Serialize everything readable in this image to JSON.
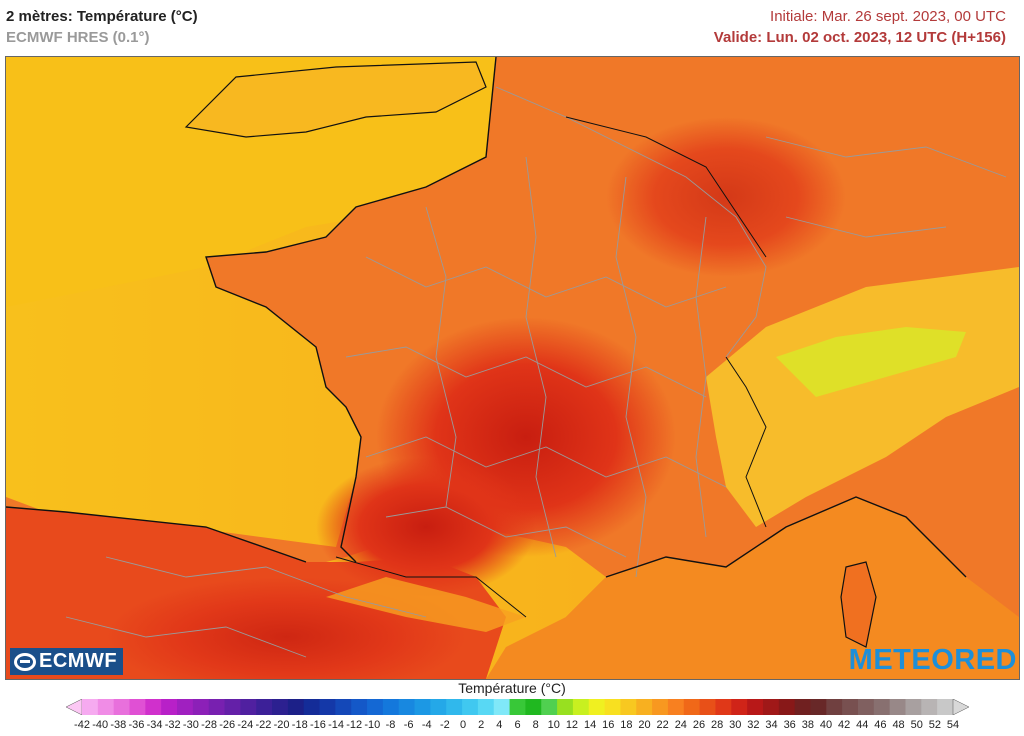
{
  "header": {
    "title": "2 mètres: Température (°C)",
    "model": "ECMWF HRES (0.1°)",
    "initial": "Initiale: Mar. 26 sept. 2023, 00 UTC",
    "valid": "Valide: Lun. 02 oct. 2023, 12 UTC (H+156)"
  },
  "logos": {
    "left": "ECMWF",
    "right": "METEORED"
  },
  "legend": {
    "title": "Température (°C)",
    "min": -42,
    "max": 54,
    "step": 2,
    "colors": [
      "#fcc8f4",
      "#f6aaf0",
      "#f08ce6",
      "#e870dc",
      "#e050d4",
      "#d030cc",
      "#b820c8",
      "#a020c0",
      "#8c20b8",
      "#7820b0",
      "#6420a8",
      "#5020a0",
      "#3c2098",
      "#2c2090",
      "#1c2088",
      "#142c98",
      "#1438a8",
      "#1448b8",
      "#1458c8",
      "#1468d4",
      "#1478dc",
      "#1888e0",
      "#1c98e4",
      "#24a8e8",
      "#30b8ec",
      "#40c8f0",
      "#58d8f4",
      "#80e8f8",
      "#38c838",
      "#20b820",
      "#50d050",
      "#98e020",
      "#c8f020",
      "#f0f020",
      "#f8e020",
      "#f8c820",
      "#f8b020",
      "#f89820",
      "#f88020",
      "#f06818",
      "#e85018",
      "#e03818",
      "#d02418",
      "#b81818",
      "#a01818",
      "#881818",
      "#702020",
      "#682828",
      "#704040",
      "#785050",
      "#806060",
      "#887070",
      "#988888",
      "#a8a0a0",
      "#b8b4b4",
      "#c8c8c8",
      "#d8d8d8"
    ],
    "ticks": [
      -42,
      -40,
      -38,
      -36,
      -34,
      -32,
      -30,
      -28,
      -26,
      -24,
      -22,
      -20,
      -18,
      -16,
      -14,
      -12,
      -10,
      -8,
      -6,
      -4,
      -2,
      0,
      2,
      4,
      6,
      8,
      10,
      12,
      14,
      16,
      18,
      20,
      22,
      24,
      26,
      28,
      30,
      32,
      34,
      36,
      38,
      40,
      42,
      44,
      46,
      48,
      50,
      52,
      54
    ]
  },
  "map": {
    "region": "France",
    "ocean_color": "#f8b41c",
    "land_warm_color": "#f07020",
    "land_hot_color": "#e03418",
    "alps_color": "#f8d830"
  }
}
